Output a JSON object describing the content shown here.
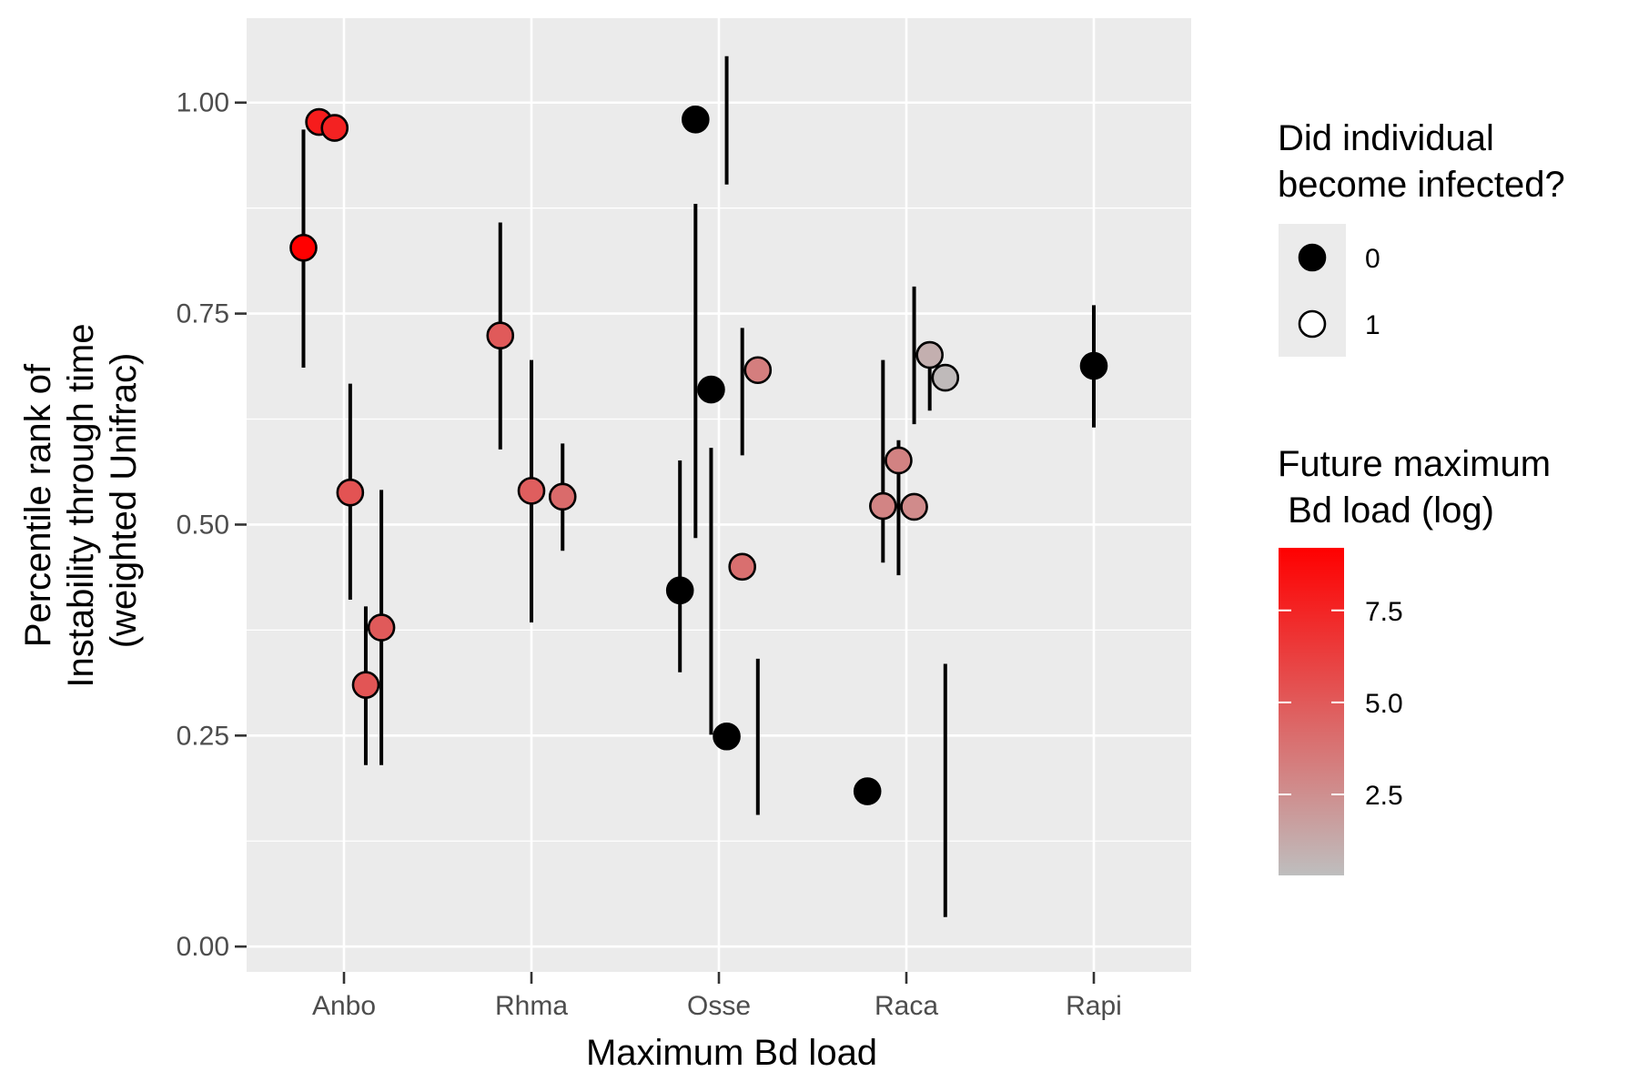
{
  "chart_data": {
    "type": "scatter",
    "xlabel": "Maximum Bd load",
    "ylabel_lines": [
      "Percentile rank of",
      "Instability through time",
      "(weighted Unifrac)"
    ],
    "ylim": [
      -0.03,
      1.1
    ],
    "yticks": [
      {
        "value": 0.0,
        "label": "0.00"
      },
      {
        "value": 0.25,
        "label": "0.25"
      },
      {
        "value": 0.5,
        "label": "0.50"
      },
      {
        "value": 0.75,
        "label": "0.75"
      },
      {
        "value": 1.0,
        "label": "1.00"
      }
    ],
    "facets": [
      "Anbo",
      "Rhma",
      "Osse",
      "Raca",
      "Rapi"
    ],
    "grid": true,
    "legend_position": "right",
    "shape_legend": {
      "title_lines": [
        "Did individual",
        "become infected?"
      ],
      "entries": [
        {
          "label": "0",
          "fill": "#000000"
        },
        {
          "label": "1",
          "fill": "#ffffff"
        }
      ]
    },
    "color_legend": {
      "title_lines": [
        "Future maximum",
        " Bd load (log)"
      ],
      "low_color": "#bebebe",
      "high_color": "#ff0000",
      "range": [
        0.3,
        9.2
      ],
      "ticks": [
        {
          "value": 2.5,
          "label": "2.5"
        },
        {
          "value": 5.0,
          "label": "5.0"
        },
        {
          "value": 7.5,
          "label": "7.5"
        }
      ]
    },
    "points": [
      {
        "facet": "Anbo",
        "dx": -0.26,
        "y": 0.828,
        "infected": 1,
        "load": 9.2
      },
      {
        "facet": "Anbo",
        "dx": -0.16,
        "y": 0.977,
        "infected": 1,
        "load": 7.9
      },
      {
        "facet": "Anbo",
        "dx": -0.06,
        "y": 0.97,
        "infected": 1,
        "load": 7.6
      },
      {
        "facet": "Anbo",
        "dx": 0.04,
        "y": 0.538,
        "infected": 1,
        "load": 5.3
      },
      {
        "facet": "Anbo",
        "dx": 0.14,
        "y": 0.31,
        "infected": 1,
        "load": 5.2
      },
      {
        "facet": "Anbo",
        "dx": 0.24,
        "y": 0.378,
        "infected": 1,
        "load": 5.0
      },
      {
        "facet": "Rhma",
        "dx": -0.2,
        "y": 0.724,
        "infected": 1,
        "load": 5.0
      },
      {
        "facet": "Rhma",
        "dx": 0.0,
        "y": 0.54,
        "infected": 1,
        "load": 4.8
      },
      {
        "facet": "Rhma",
        "dx": 0.2,
        "y": 0.533,
        "infected": 1,
        "load": 4.2
      },
      {
        "facet": "Osse",
        "dx": -0.25,
        "y": 0.422,
        "infected": 0,
        "load": null
      },
      {
        "facet": "Osse",
        "dx": -0.15,
        "y": 0.98,
        "infected": 0,
        "load": null
      },
      {
        "facet": "Osse",
        "dx": -0.05,
        "y": 0.66,
        "infected": 0,
        "load": null
      },
      {
        "facet": "Osse",
        "dx": 0.05,
        "y": 0.249,
        "infected": 0,
        "load": null
      },
      {
        "facet": "Osse",
        "dx": 0.15,
        "y": 0.45,
        "infected": 1,
        "load": 4.0
      },
      {
        "facet": "Osse",
        "dx": 0.25,
        "y": 0.683,
        "infected": 1,
        "load": 3.3
      },
      {
        "facet": "Raca",
        "dx": -0.25,
        "y": 0.184,
        "infected": 0,
        "load": null
      },
      {
        "facet": "Raca",
        "dx": -0.15,
        "y": 0.522,
        "infected": 1,
        "load": 3.0
      },
      {
        "facet": "Raca",
        "dx": -0.05,
        "y": 0.576,
        "infected": 1,
        "load": 3.1
      },
      {
        "facet": "Raca",
        "dx": 0.05,
        "y": 0.521,
        "infected": 1,
        "load": 2.7
      },
      {
        "facet": "Raca",
        "dx": 0.15,
        "y": 0.701,
        "infected": 1,
        "load": 1.0
      },
      {
        "facet": "Raca",
        "dx": 0.25,
        "y": 0.674,
        "infected": 1,
        "load": 0.5
      },
      {
        "facet": "Rapi",
        "dx": 0.0,
        "y": 0.688,
        "infected": 0,
        "load": null
      }
    ],
    "error_bars": [
      {
        "facet": "Anbo",
        "dx": -0.26,
        "low": 0.686,
        "high": 0.968
      },
      {
        "facet": "Anbo",
        "dx": 0.04,
        "low": 0.411,
        "high": 0.667
      },
      {
        "facet": "Anbo",
        "dx": 0.14,
        "low": 0.215,
        "high": 0.403
      },
      {
        "facet": "Anbo",
        "dx": 0.24,
        "low": 0.215,
        "high": 0.541
      },
      {
        "facet": "Rhma",
        "dx": -0.2,
        "low": 0.589,
        "high": 0.858
      },
      {
        "facet": "Rhma",
        "dx": 0.0,
        "low": 0.384,
        "high": 0.695
      },
      {
        "facet": "Rhma",
        "dx": 0.2,
        "low": 0.469,
        "high": 0.596
      },
      {
        "facet": "Osse",
        "dx": -0.25,
        "low": 0.325,
        "high": 0.576
      },
      {
        "facet": "Osse",
        "dx": -0.15,
        "low": 0.484,
        "high": 0.88
      },
      {
        "facet": "Osse",
        "dx": -0.05,
        "low": 0.251,
        "high": 0.591
      },
      {
        "facet": "Osse",
        "dx": 0.05,
        "low": 0.903,
        "high": 1.055
      },
      {
        "facet": "Osse",
        "dx": 0.15,
        "low": 0.582,
        "high": 0.733
      },
      {
        "facet": "Osse",
        "dx": 0.25,
        "low": 0.156,
        "high": 0.341
      },
      {
        "facet": "Raca",
        "dx": -0.15,
        "low": 0.455,
        "high": 0.695
      },
      {
        "facet": "Raca",
        "dx": -0.05,
        "low": 0.44,
        "high": 0.6
      },
      {
        "facet": "Raca",
        "dx": 0.05,
        "low": 0.619,
        "high": 0.782
      },
      {
        "facet": "Raca",
        "dx": 0.15,
        "low": 0.635,
        "high": 0.701
      },
      {
        "facet": "Raca",
        "dx": 0.25,
        "low": 0.035,
        "high": 0.335
      },
      {
        "facet": "Rapi",
        "dx": 0.0,
        "low": 0.615,
        "high": 0.76
      }
    ]
  }
}
